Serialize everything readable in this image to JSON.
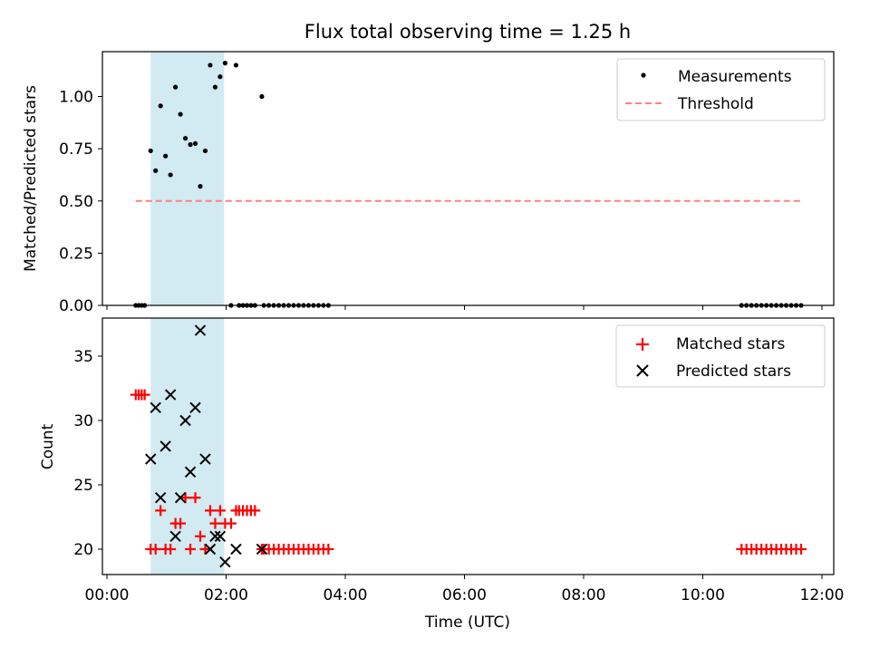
{
  "chart_data": [
    {
      "type": "scatter",
      "title": "Flux total observing time = 1.25 h",
      "xlabel": "",
      "ylabel": "Matched/Predicted stars",
      "xlim": [
        "00:00",
        "12:00"
      ],
      "ylim": [
        0,
        1.2
      ],
      "yticks": [
        "0.00",
        "0.25",
        "0.50",
        "0.75",
        "1.00"
      ],
      "shaded_interval": [
        "00:44",
        "01:58"
      ],
      "legend_position": "upper right",
      "series": [
        {
          "name": "Measurements",
          "marker": "dot",
          "color": "#000000",
          "points": [
            [
              "00:29",
              0
            ],
            [
              "00:32",
              0
            ],
            [
              "00:35",
              0
            ],
            [
              "00:38",
              0
            ],
            [
              "00:44",
              0.74
            ],
            [
              "00:49",
              0.645
            ],
            [
              "00:54",
              0.955
            ],
            [
              "00:59",
              0.715
            ],
            [
              "01:04",
              0.625
            ],
            [
              "01:09",
              1.045
            ],
            [
              "01:14",
              0.915
            ],
            [
              "01:19",
              0.8
            ],
            [
              "01:24",
              0.77
            ],
            [
              "01:29",
              0.775
            ],
            [
              "01:34",
              0.57
            ],
            [
              "01:39",
              0.74
            ],
            [
              "01:44",
              1.15
            ],
            [
              "01:49",
              1.045
            ],
            [
              "01:54",
              1.095
            ],
            [
              "01:59",
              1.16
            ],
            [
              "02:05",
              0
            ],
            [
              "02:10",
              1.15
            ],
            [
              "02:13",
              0
            ],
            [
              "02:17",
              0
            ],
            [
              "02:21",
              0
            ],
            [
              "02:25",
              0
            ],
            [
              "02:29",
              0
            ],
            [
              "02:36",
              1.0
            ],
            [
              "02:38",
              0
            ],
            [
              "02:43",
              0
            ],
            [
              "02:48",
              0
            ],
            [
              "02:53",
              0
            ],
            [
              "02:58",
              0
            ],
            [
              "03:03",
              0
            ],
            [
              "03:08",
              0
            ],
            [
              "03:13",
              0
            ],
            [
              "03:18",
              0
            ],
            [
              "03:23",
              0
            ],
            [
              "03:28",
              0
            ],
            [
              "03:33",
              0
            ],
            [
              "03:38",
              0
            ],
            [
              "03:43",
              0
            ],
            [
              "10:39",
              0
            ],
            [
              "10:44",
              0
            ],
            [
              "10:49",
              0
            ],
            [
              "10:54",
              0
            ],
            [
              "10:59",
              0
            ],
            [
              "11:04",
              0
            ],
            [
              "11:09",
              0
            ],
            [
              "11:14",
              0
            ],
            [
              "11:19",
              0
            ],
            [
              "11:24",
              0
            ],
            [
              "11:29",
              0
            ],
            [
              "11:34",
              0
            ],
            [
              "11:39",
              0
            ]
          ]
        },
        {
          "name": "Threshold",
          "line_style": "dashed",
          "color": "#ff8080",
          "points": [
            [
              "00:29",
              0.5
            ],
            [
              "11:39",
              0.5
            ]
          ]
        }
      ]
    },
    {
      "type": "scatter",
      "title": "",
      "xlabel": "Time (UTC)",
      "ylabel": "Count",
      "xlim": [
        "00:00",
        "12:00"
      ],
      "ylim": [
        18,
        38
      ],
      "xticks": [
        "00:00",
        "02:00",
        "04:00",
        "06:00",
        "08:00",
        "10:00",
        "12:00"
      ],
      "yticks": [
        "20",
        "25",
        "30",
        "35"
      ],
      "shaded_interval": [
        "00:44",
        "01:58"
      ],
      "legend_position": "upper right",
      "series": [
        {
          "name": "Matched stars",
          "marker": "plus",
          "color": "#ff0000",
          "points": [
            [
              "00:29",
              32
            ],
            [
              "00:32",
              32
            ],
            [
              "00:35",
              32
            ],
            [
              "00:38",
              32
            ],
            [
              "00:44",
              20
            ],
            [
              "00:49",
              20
            ],
            [
              "00:54",
              23
            ],
            [
              "00:59",
              20
            ],
            [
              "01:04",
              20
            ],
            [
              "01:09",
              22
            ],
            [
              "01:14",
              22
            ],
            [
              "01:19",
              24
            ],
            [
              "01:24",
              20
            ],
            [
              "01:29",
              24
            ],
            [
              "01:34",
              21
            ],
            [
              "01:39",
              20
            ],
            [
              "01:44",
              23
            ],
            [
              "01:49",
              22
            ],
            [
              "01:54",
              23
            ],
            [
              "01:59",
              22
            ],
            [
              "02:05",
              22
            ],
            [
              "02:10",
              23
            ],
            [
              "02:13",
              23
            ],
            [
              "02:17",
              23
            ],
            [
              "02:21",
              23
            ],
            [
              "02:25",
              23
            ],
            [
              "02:29",
              23
            ],
            [
              "02:36",
              20
            ],
            [
              "02:38",
              20
            ],
            [
              "02:43",
              20
            ],
            [
              "02:48",
              20
            ],
            [
              "02:53",
              20
            ],
            [
              "02:58",
              20
            ],
            [
              "03:03",
              20
            ],
            [
              "03:08",
              20
            ],
            [
              "03:13",
              20
            ],
            [
              "03:18",
              20
            ],
            [
              "03:23",
              20
            ],
            [
              "03:28",
              20
            ],
            [
              "03:33",
              20
            ],
            [
              "03:38",
              20
            ],
            [
              "03:43",
              20
            ],
            [
              "10:39",
              20
            ],
            [
              "10:44",
              20
            ],
            [
              "10:49",
              20
            ],
            [
              "10:54",
              20
            ],
            [
              "10:59",
              20
            ],
            [
              "11:04",
              20
            ],
            [
              "11:09",
              20
            ],
            [
              "11:14",
              20
            ],
            [
              "11:19",
              20
            ],
            [
              "11:24",
              20
            ],
            [
              "11:29",
              20
            ],
            [
              "11:34",
              20
            ],
            [
              "11:39",
              20
            ]
          ]
        },
        {
          "name": "Predicted stars",
          "marker": "x",
          "color": "#000000",
          "points": [
            [
              "00:44",
              27
            ],
            [
              "00:49",
              31
            ],
            [
              "00:54",
              24
            ],
            [
              "00:59",
              28
            ],
            [
              "01:04",
              32
            ],
            [
              "01:09",
              21
            ],
            [
              "01:14",
              24
            ],
            [
              "01:19",
              30
            ],
            [
              "01:24",
              26
            ],
            [
              "01:29",
              31
            ],
            [
              "01:34",
              37
            ],
            [
              "01:39",
              27
            ],
            [
              "01:44",
              20
            ],
            [
              "01:49",
              21
            ],
            [
              "01:54",
              21
            ],
            [
              "01:59",
              19
            ],
            [
              "02:10",
              20
            ],
            [
              "02:36",
              20
            ]
          ]
        }
      ]
    }
  ],
  "colors": {
    "shade": "#add8e6",
    "matched": "#ff0000",
    "predicted": "#000000",
    "threshold": "#ff8080",
    "measurements": "#000000"
  }
}
